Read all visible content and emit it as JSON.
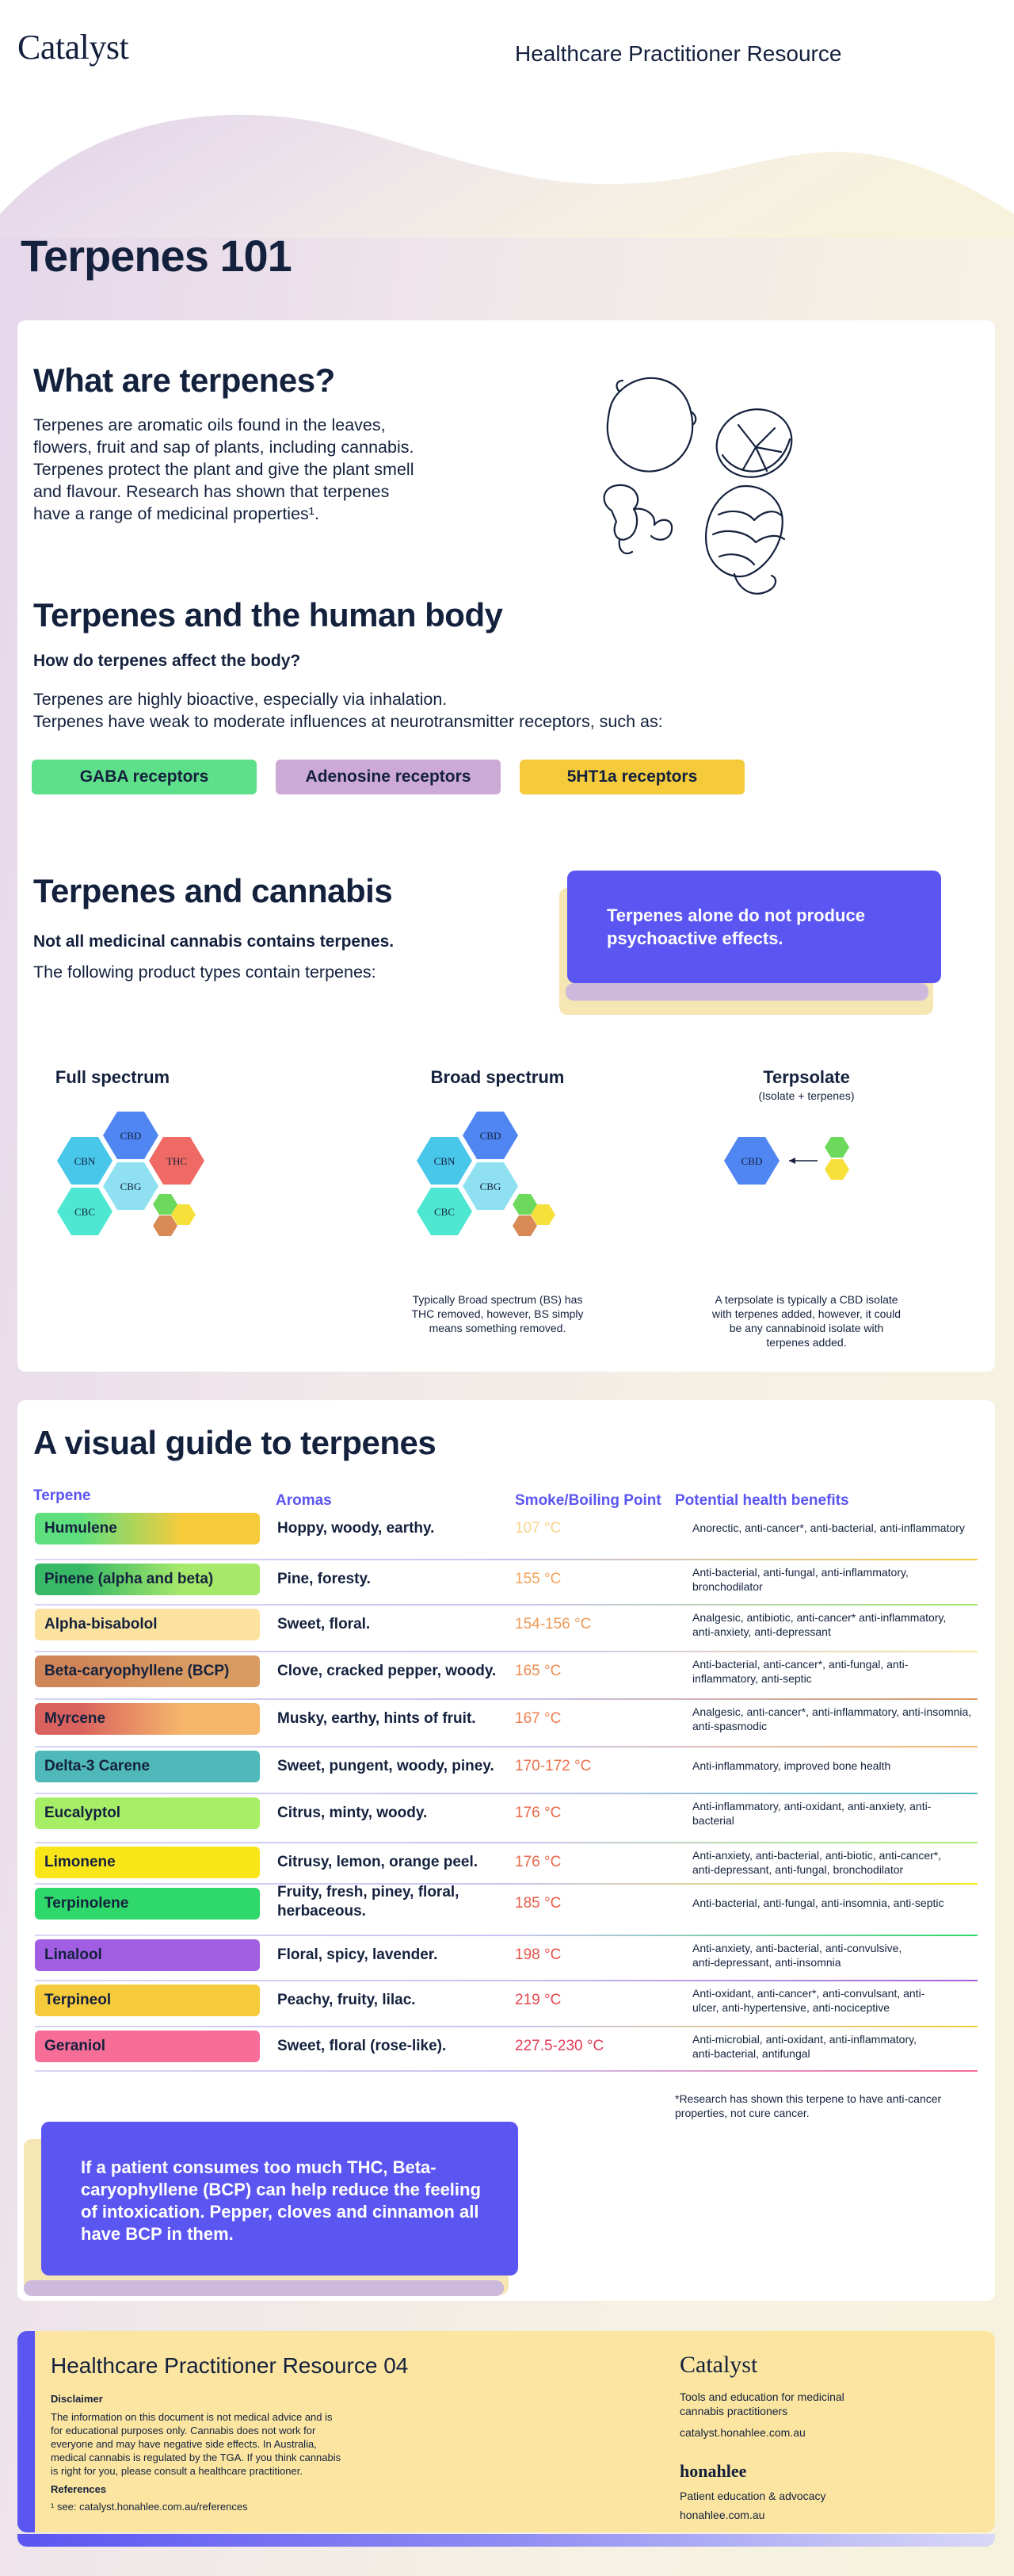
{
  "header": {
    "brand": "Catalyst",
    "title": "Healthcare Practitioner Resource"
  },
  "page_title": "Terpenes 101",
  "what": {
    "heading": "What are terpenes?",
    "lines": [
      "Terpenes are aromatic oils found in the leaves,",
      "flowers, fruit and sap of plants, including cannabis.",
      "Terpenes protect the plant and give the plant smell",
      "and flavour. Research has shown that terpenes",
      "have a range of medicinal properties¹."
    ],
    "illustration_icon": "botanical-illustration-icon"
  },
  "body": {
    "heading": "Terpenes and the human body",
    "question": "How do terpenes affect the body?",
    "line1": "Terpenes are highly bioactive, especially via inhalation.",
    "line2": "Terpenes have weak to moderate influences at  neurotransmitter receptors, such as:",
    "receptors": [
      {
        "label": "GABA receptors",
        "color": "#5ee08a"
      },
      {
        "label": "Adenosine receptors",
        "color": "#cda9d6"
      },
      {
        "label": "5HT1a receptors",
        "color": "#f5cb3c"
      }
    ]
  },
  "cannabis": {
    "heading": "Terpenes and cannabis",
    "bold_line": "Not all medicinal cannabis contains terpenes.",
    "line": "The following product types contain terpenes:",
    "callout": [
      "Terpenes alone do not produce",
      "psychoactive effects."
    ],
    "products": [
      {
        "title": "Full spectrum",
        "subtitle": "",
        "note": []
      },
      {
        "title": "Broad spectrum",
        "subtitle": "",
        "note": [
          "Typically Broad spectrum (BS) has",
          "THC removed, however, BS simply",
          "means something removed."
        ]
      },
      {
        "title": "Terpsolate",
        "subtitle": "(Isolate + terpenes)",
        "note": [
          "A terpsolate is typically a CBD isolate",
          "with terpenes added, however, it could",
          "be any cannabinoid isolate with",
          "terpenes added."
        ]
      }
    ],
    "hex_labels": {
      "cbd": "CBD",
      "cbn": "CBN",
      "thc": "THC",
      "cbg": "CBG",
      "cbc": "CBC"
    },
    "hex_colors": {
      "cbd": "#4f86f2",
      "cbn": "#48c7ea",
      "thc": "#ef6a64",
      "cbg": "#8fe1f2",
      "cbc": "#4ee8d2",
      "t1": "#6cd95c",
      "t2": "#f8e03a",
      "t3": "#d98a55",
      "t4": "#6cd95c",
      "t5": "#f8e03a"
    }
  },
  "guide": {
    "heading": "A visual guide to terpenes",
    "columns": [
      "Terpene",
      "Aromas",
      "Smoke/Boiling Point",
      "Potential health benefits"
    ],
    "rows": [
      {
        "name": "Humulene",
        "aroma": [
          "Hoppy, woody, earthy."
        ],
        "temp": "107 °C",
        "benefits": [
          "Anorectic, anti-cancer*, anti-bacterial, anti-inflammatory"
        ],
        "color1": "#5ddf7d",
        "color2": "#f5cb3c",
        "tcolor": "#f8d38a"
      },
      {
        "name": "Pinene (alpha and beta)",
        "aroma": [
          "Pine, foresty."
        ],
        "temp": "155 °C",
        "benefits": [
          "Anti-bacterial, anti-fungal, anti-inflammatory,",
          "bronchodilator"
        ],
        "color1": "#36b866",
        "color2": "#a6e86a",
        "tcolor": "#f3a35a"
      },
      {
        "name": "Alpha-bisabolol",
        "aroma": [
          "Sweet, floral."
        ],
        "temp": "154-156 °C",
        "benefits": [
          "Analgesic, antibiotic, anti-cancer* anti-inflammatory,",
          "anti-anxiety, anti-depressant"
        ],
        "color1": "#fbe29e",
        "color2": "#fbe29e",
        "tcolor": "#f09a55"
      },
      {
        "name": "Beta-caryophyllene (BCP)",
        "aroma": [
          "Clove, cracked pepper, woody."
        ],
        "temp": "165 °C",
        "benefits": [
          "Anti-bacterial, anti-cancer*, anti-fungal, anti-",
          "inflammatory, anti-septic"
        ],
        "color1": "#cf8558",
        "color2": "#d99a62",
        "tcolor": "#ef8c50"
      },
      {
        "name": "Myrcene",
        "aroma": [
          "Musky, earthy, hints of fruit."
        ],
        "temp": "167 °C",
        "benefits": [
          "Analgesic, anti-cancer*, anti-inflammatory, anti-insomnia,",
          "anti-spasmodic"
        ],
        "color1": "#d9625e",
        "color2": "#f5b56a",
        "tcolor": "#ee7e4c"
      },
      {
        "name": "Delta-3 Carene",
        "aroma": [
          "Sweet, pungent, woody, piney."
        ],
        "temp": "170-172 °C",
        "benefits": [
          "Anti-inflammatory, improved bone health"
        ],
        "color1": "#4fb8b8",
        "color2": "#4fb8b8",
        "tcolor": "#ec7049"
      },
      {
        "name": "Eucalyptol",
        "aroma": [
          "Citrus, minty, woody."
        ],
        "temp": "176 °C",
        "benefits": [
          "Anti-inflammatory,  anti-oxidant, anti-anxiety, anti-",
          "bacterial"
        ],
        "color1": "#a7ee67",
        "color2": "#a7ee67",
        "tcolor": "#ea6748"
      },
      {
        "name": "Limonene",
        "aroma": [
          "Citrusy, lemon, orange peel."
        ],
        "temp": "176 °C",
        "benefits": [
          "Anti-anxiety, anti-bacterial, anti-biotic, anti-cancer*,",
          "anti-depressant, anti-fungal, bronchodilator"
        ],
        "color1": "#f8e619",
        "color2": "#f8e619",
        "tcolor": "#ea6748"
      },
      {
        "name": "Terpinolene",
        "aroma": [
          "Fruity, fresh, piney, floral,",
          "herbaceous."
        ],
        "temp": "185 °C",
        "benefits": [
          "Anti-bacterial, anti-fungal, anti-insomnia, anti-septic"
        ],
        "color1": "#2fd86a",
        "color2": "#2fd86a",
        "tcolor": "#e85d48"
      },
      {
        "name": "Linalool",
        "aroma": [
          "Floral, spicy, lavender."
        ],
        "temp": "198 °C",
        "benefits": [
          "Anti-anxiety, anti-bacterial, anti-convulsive,",
          "anti-depressant, anti-insomnia"
        ],
        "color1": "#a25ee2",
        "color2": "#a25ee2",
        "tcolor": "#e6524a"
      },
      {
        "name": "Terpineol",
        "aroma": [
          "Peachy, fruity, lilac."
        ],
        "temp": "219 °C",
        "benefits": [
          "Anti-oxidant, anti-cancer*, anti-convulsant, anti-",
          "ulcer, anti-hypertensive, anti-nociceptive"
        ],
        "color1": "#f5cb3c",
        "color2": "#f5cb3c",
        "tcolor": "#e4474d"
      },
      {
        "name": "Geraniol",
        "aroma": [
          "Sweet, floral (rose-like)."
        ],
        "temp": "227.5-230 °C",
        "benefits": [
          "Anti-microbial, anti-oxidant, anti-inflammatory,",
          "anti-bacterial, antifungal"
        ],
        "color1": "#f66d98",
        "color2": "#f66d98",
        "tcolor": "#e23c58"
      }
    ],
    "footnote": [
      "*Research has shown this terpene to have anti-cancer",
      "properties, not cure cancer."
    ],
    "callout": [
      "If a patient consumes too much THC, Beta-",
      "caryophyllene (BCP) can help reduce the feeling",
      "of intoxication. Pepper, cloves and cinnamon all",
      "have BCP in them."
    ]
  },
  "footer": {
    "title": "Healthcare Practitioner Resource 04",
    "disclaimer_heading": "Disclaimer",
    "disclaimer": [
      "The information on this document is not medical advice and is",
      "for educational purposes only. Cannabis does not work for",
      "everyone and may have negative side effects. In Australia,",
      "medical cannabis is regulated by the TGA. If you think cannabis",
      "is right for you, please consult a healthcare practitioner."
    ],
    "references_heading": "References",
    "reference": "¹ see: catalyst.honahlee.com.au/references",
    "catalyst": {
      "name": "Catalyst",
      "desc": [
        "Tools and education for medicinal",
        "cannabis practitioners"
      ],
      "url": "catalyst.honahlee.com.au"
    },
    "honahlee": {
      "name": "honahlee",
      "desc": "Patient education & advocacy",
      "url": "honahlee.com.au"
    }
  }
}
